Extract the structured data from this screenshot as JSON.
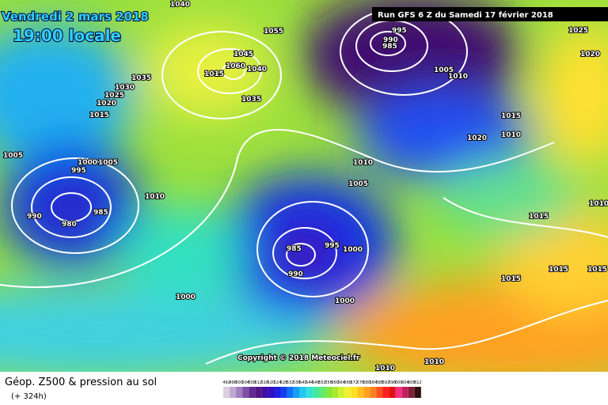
{
  "header": {
    "date": "Vendredi 2 mars 2018",
    "time": "19:00 locale",
    "run": "Run GFS 6 Z du Samedi 17 février 2018"
  },
  "copyright": "Copyright © 2018 Meteociel.fr",
  "footer": {
    "title": "Géop. Z500 & pression au sol",
    "lead": "(+ 324h)"
  },
  "scale": [
    492,
    496,
    500,
    504,
    508,
    512,
    516,
    520,
    524,
    528,
    532,
    536,
    540,
    544,
    548,
    552,
    556,
    560,
    564,
    568,
    572,
    576,
    580,
    584,
    588,
    592,
    596,
    600,
    604,
    608,
    612
  ],
  "isobar_labels": [
    1040,
    1055,
    1045,
    1060,
    1040,
    1015,
    1035,
    1035,
    1030,
    1025,
    1020,
    1015,
    1005,
    1000,
    1005,
    995,
    990,
    980,
    985,
    1010,
    995,
    990,
    985,
    1005,
    1010,
    1025,
    1020,
    1015,
    1010,
    1020,
    1010,
    1005,
    1015,
    1010,
    985,
    995,
    1000,
    990,
    1015,
    1015,
    1015,
    1000,
    1000,
    1010,
    1010
  ]
}
